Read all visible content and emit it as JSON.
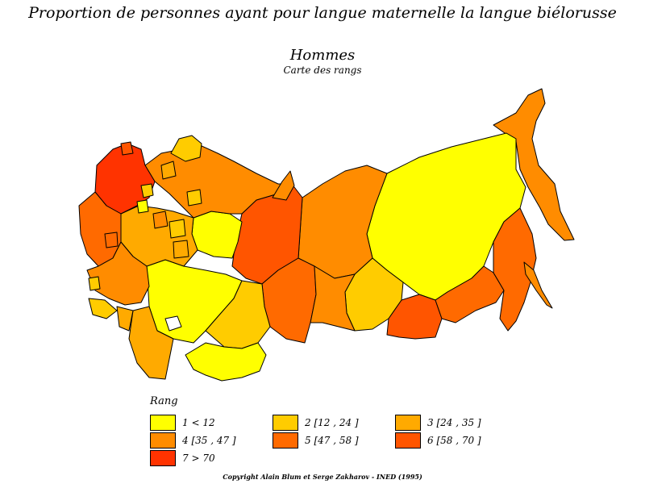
{
  "title": {
    "line1": "Proportion de personnes ayant pour langue maternelle la langue biélorusse",
    "line2": "Hommes",
    "line3": "Carte des rangs"
  },
  "legend": {
    "title": "Rang",
    "items": [
      {
        "label": "1  <  12",
        "color": "#ffff00"
      },
      {
        "label": "2  [12 , 24 ]",
        "color": "#ffcc00"
      },
      {
        "label": "3  [24 , 35 ]",
        "color": "#ffaa00"
      },
      {
        "label": "4  [35 , 47 ]",
        "color": "#ff8c00"
      },
      {
        "label": "5  [47 , 58 ]",
        "color": "#ff6a00"
      },
      {
        "label": "6  [58 , 70 ]",
        "color": "#ff5500"
      },
      {
        "label": "7  >  70",
        "color": "#ff3300"
      }
    ]
  },
  "footer": {
    "copyright": "Copyright Alain Blum et Serge Zakharov - INED (1995)"
  }
}
